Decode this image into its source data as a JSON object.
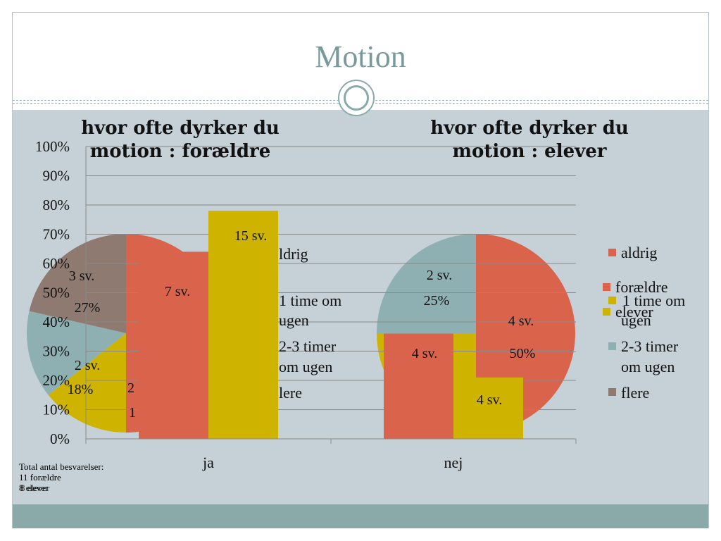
{
  "slide": {
    "title": "Motion"
  },
  "colors": {
    "aldrig": "#d9634b",
    "one_time": "#ceb400",
    "two_three": "#8fb0b2",
    "flere": "#8e7a70",
    "gridline": "#8a8a8a"
  },
  "chart_data": [
    {
      "type": "bar",
      "categories": [
        "ja",
        "nej"
      ],
      "ylim": [
        0,
        100
      ],
      "yticks": [
        "0%",
        "10%",
        "20%",
        "30%",
        "40%",
        "50%",
        "60%",
        "70%",
        "80%",
        "90%",
        "100%"
      ],
      "series": [
        {
          "name": "forældre",
          "values": [
            64,
            36
          ]
        },
        {
          "name": "elever",
          "values": [
            78,
            21
          ]
        }
      ],
      "data_labels": [
        "7 sv.",
        "15 sv.",
        "4 sv.",
        "4 sv."
      ],
      "grid": true,
      "legend": "right"
    },
    {
      "type": "pie",
      "title": "hvor ofte dyrker du motion : forældre",
      "slices": [
        {
          "name": "aldrig",
          "value": 7
        },
        {
          "name": "1 time om ugen",
          "value": 2
        },
        {
          "name": "2-3 timer om ugen",
          "value": 2
        },
        {
          "name": "flere",
          "value": 3
        }
      ],
      "visible_labels": [
        "3 sv.",
        "27%",
        "2 sv.",
        "18%",
        "2",
        "1"
      ],
      "legend_fragments": [
        "ldrig",
        "1 time om",
        "ugen",
        "2-3 timer",
        "om ugen",
        "lere"
      ]
    },
    {
      "type": "pie",
      "title": "hvor ofte dyrker du motion : elever",
      "slices": [
        {
          "name": "aldrig",
          "value": 4
        },
        {
          "name": "1 time om ugen",
          "value": 2
        },
        {
          "name": "2-3 timer om ugen",
          "value": 2
        },
        {
          "name": "flere",
          "value": 0
        }
      ],
      "visible_labels": [
        "2 sv.",
        "25%",
        "4 sv.",
        "50%"
      ],
      "legend": [
        "aldrig",
        "1 time om",
        "ugen",
        "2-3 timer",
        "om ugen",
        "flere"
      ],
      "bar_legend": [
        "forældre",
        "elever"
      ]
    }
  ],
  "footnote": {
    "line1": "Total antal besvarelser:",
    "line2": "11 forældre",
    "line3": "8 elever",
    "line3_overlap": "8 elever"
  }
}
